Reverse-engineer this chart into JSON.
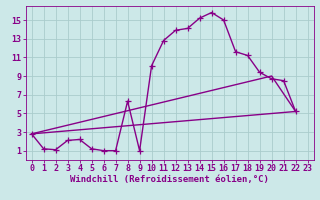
{
  "background_color": "#cce8e8",
  "grid_color": "#aacccc",
  "line_color": "#880088",
  "xlabel": "Windchill (Refroidissement éolien,°C)",
  "xlim": [
    -0.5,
    23.5
  ],
  "ylim": [
    0,
    16.5
  ],
  "xticks": [
    0,
    1,
    2,
    3,
    4,
    5,
    6,
    7,
    8,
    9,
    10,
    11,
    12,
    13,
    14,
    15,
    16,
    17,
    18,
    19,
    20,
    21,
    22,
    23
  ],
  "yticks": [
    1,
    3,
    5,
    7,
    9,
    11,
    13,
    15
  ],
  "curve1_x": [
    0,
    1,
    2,
    3,
    4,
    5,
    6,
    7,
    8,
    9,
    10,
    11,
    12,
    13,
    14,
    15,
    16,
    17,
    18,
    19,
    20,
    21,
    22
  ],
  "curve1_y": [
    2.8,
    1.2,
    1.1,
    2.1,
    2.2,
    1.2,
    1.0,
    1.0,
    6.3,
    1.0,
    10.1,
    12.8,
    13.9,
    14.1,
    15.2,
    15.8,
    15.0,
    11.6,
    11.2,
    9.4,
    8.7,
    8.5,
    5.2
  ],
  "line1_x": [
    0,
    22
  ],
  "line1_y": [
    2.8,
    5.2
  ],
  "line2_x": [
    0,
    20,
    22
  ],
  "line2_y": [
    2.8,
    9.0,
    5.2
  ],
  "font_family": "monospace",
  "tick_fontsize": 6,
  "xlabel_fontsize": 6.5,
  "markersize": 4,
  "linewidth": 1.0
}
